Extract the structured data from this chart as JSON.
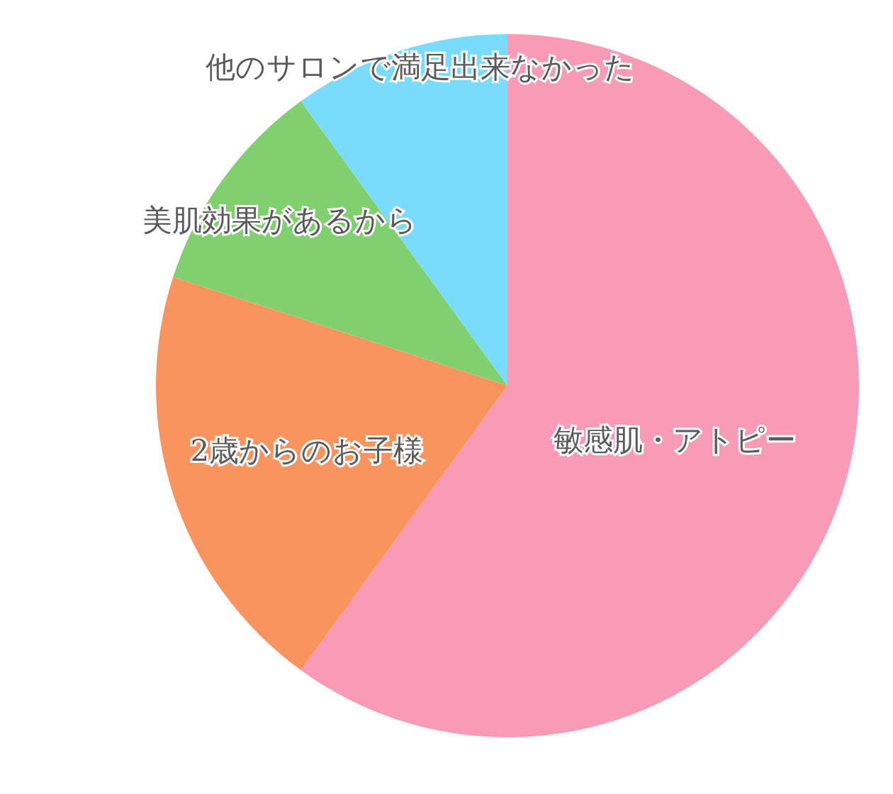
{
  "chart_data": {
    "type": "pie",
    "categories": [
      "敏感肌・アトピー",
      "2歳からのお子様",
      "美肌効果があるから",
      "他のサロンで満足出来なかった"
    ],
    "values": [
      60,
      20,
      10,
      10
    ],
    "colors": [
      "#f99ab7",
      "#fa945e",
      "#80d070",
      "#7adcfc"
    ]
  }
}
